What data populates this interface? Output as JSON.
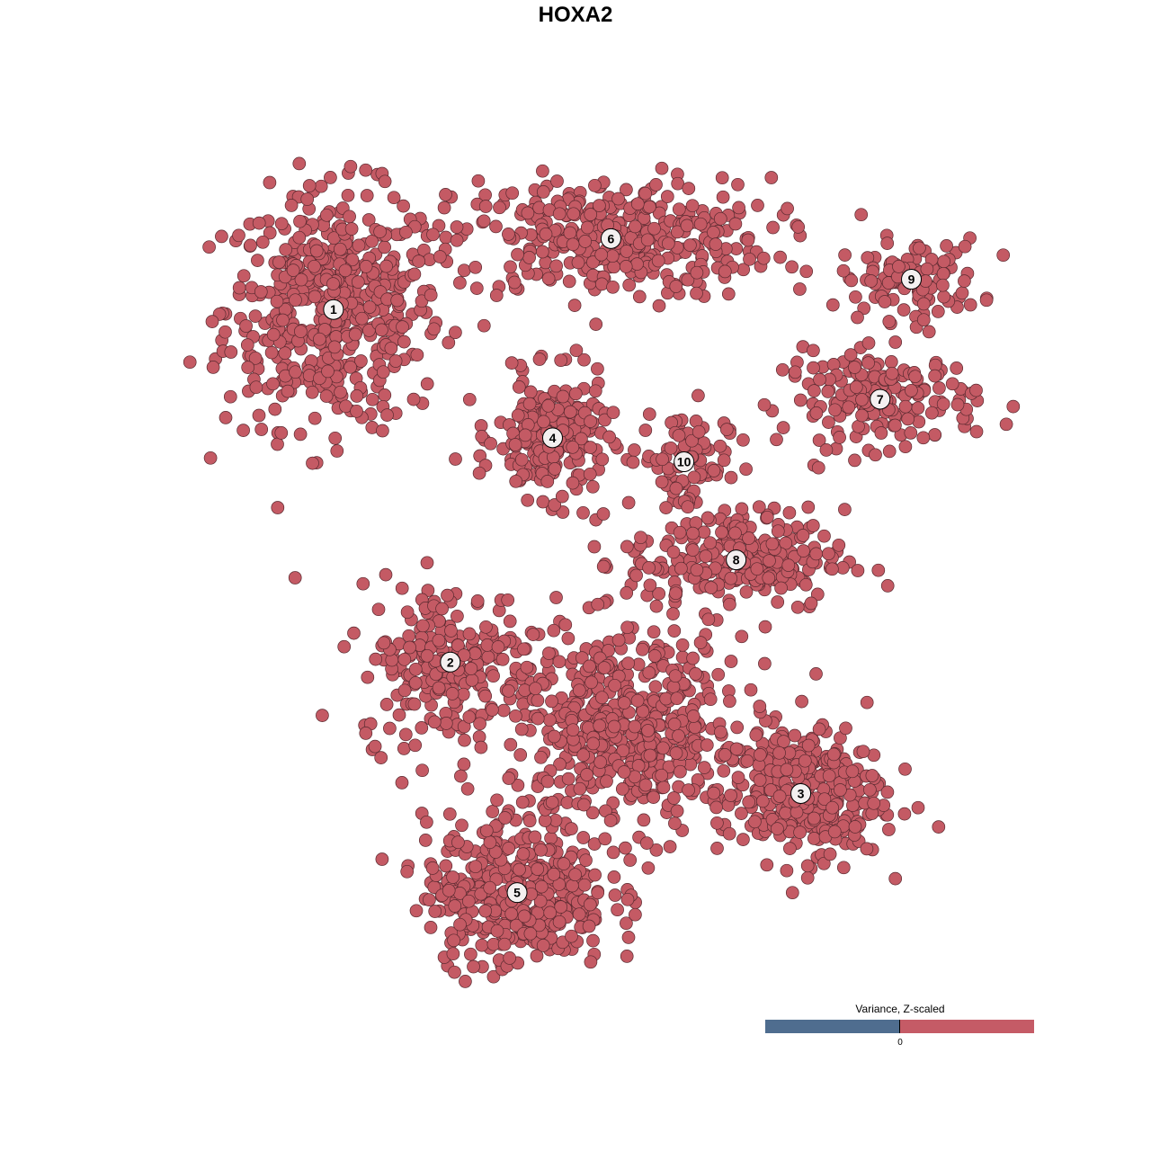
{
  "chart_data": {
    "type": "scatter",
    "title": "HOXA2",
    "xlabel": "",
    "ylabel": "",
    "xlim": [
      -40,
      40
    ],
    "ylim": [
      -40,
      40
    ],
    "grid": false,
    "axes_visible": false,
    "point_color": "#c45a64",
    "point_stroke": "#5a2a30",
    "clusters": [
      {
        "label": "1",
        "center": [
          -23.2,
          25.5
        ],
        "sd": [
          6.5,
          7.0
        ],
        "n": 520
      },
      {
        "label": "6",
        "center": [
          3.4,
          32.3
        ],
        "sd": [
          9.5,
          3.6
        ],
        "n": 380
      },
      {
        "label": "9",
        "center": [
          32.2,
          28.4
        ],
        "sd": [
          4.2,
          2.4
        ],
        "n": 110
      },
      {
        "label": "7",
        "center": [
          29.2,
          16.9
        ],
        "sd": [
          5.8,
          2.8
        ],
        "n": 180
      },
      {
        "label": "4",
        "center": [
          -2.2,
          13.2
        ],
        "sd": [
          3.3,
          3.6
        ],
        "n": 230
      },
      {
        "label": "10",
        "center": [
          10.4,
          10.9
        ],
        "sd": [
          2.6,
          3.2
        ],
        "n": 90
      },
      {
        "label": "8",
        "center": [
          15.4,
          1.5
        ],
        "sd": [
          6.5,
          3.0
        ],
        "n": 240
      },
      {
        "label": "2",
        "center": [
          -12.0,
          -8.3
        ],
        "sd": [
          5.5,
          4.8
        ],
        "n": 230
      },
      {
        "label": "3",
        "center": [
          21.6,
          -20.9
        ],
        "sd": [
          5.0,
          4.0
        ],
        "n": 330
      },
      {
        "label": "5",
        "center": [
          -5.6,
          -30.4
        ],
        "sd": [
          5.5,
          4.5
        ],
        "n": 400
      },
      {
        "label": "",
        "center": [
          5.0,
          -15.0
        ],
        "sd": [
          7.0,
          6.0
        ],
        "n": 520
      }
    ],
    "legend": {
      "title": "Variance, Z-scaled",
      "placement": "bottom-right",
      "tick_label": "0",
      "negative_color": "#4f6d8f",
      "positive_color": "#c55b66"
    }
  }
}
